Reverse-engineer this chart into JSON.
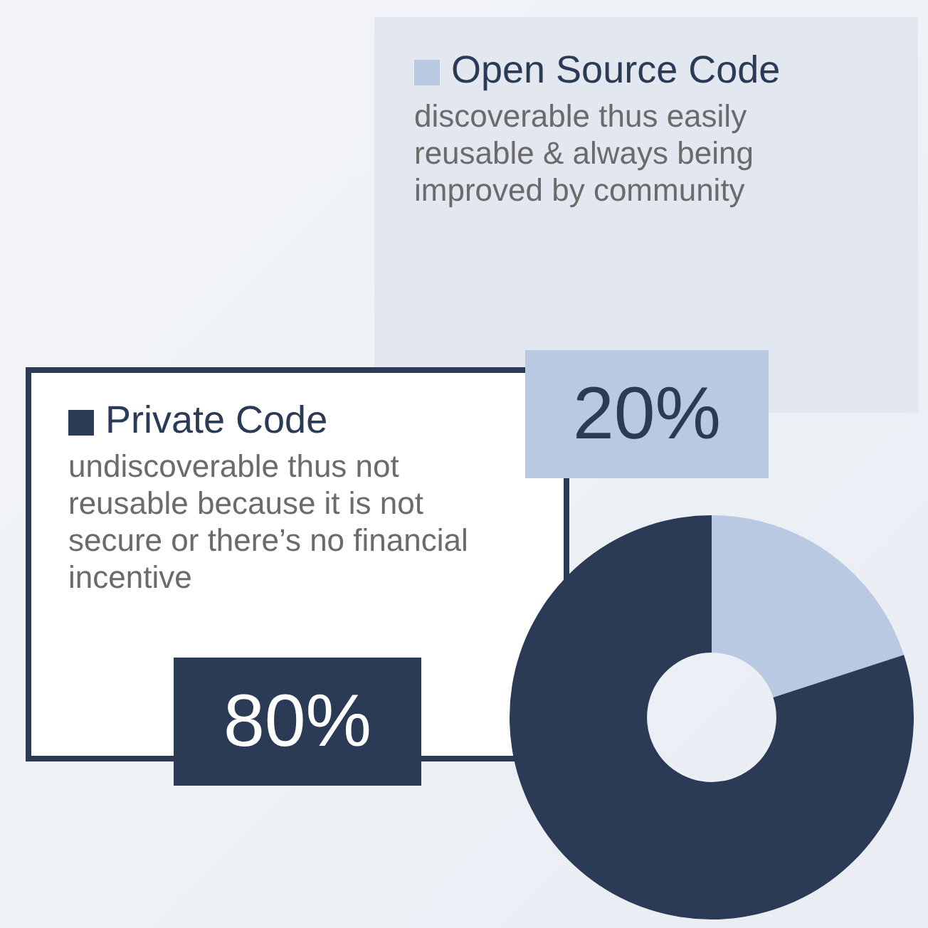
{
  "chart_data": {
    "type": "donut",
    "categories": [
      "Open Source Code",
      "Private Code"
    ],
    "values": [
      20,
      80
    ],
    "colors": [
      "#b9c9e2",
      "#2b3a55"
    ],
    "value_labels": [
      "20%",
      "80%"
    ],
    "annotations": [
      "discoverable thus easily reusable & always being improved by community",
      "undiscoverable thus not reusable because it is not secure or there’s no financial incentive"
    ],
    "legend": "left"
  }
}
